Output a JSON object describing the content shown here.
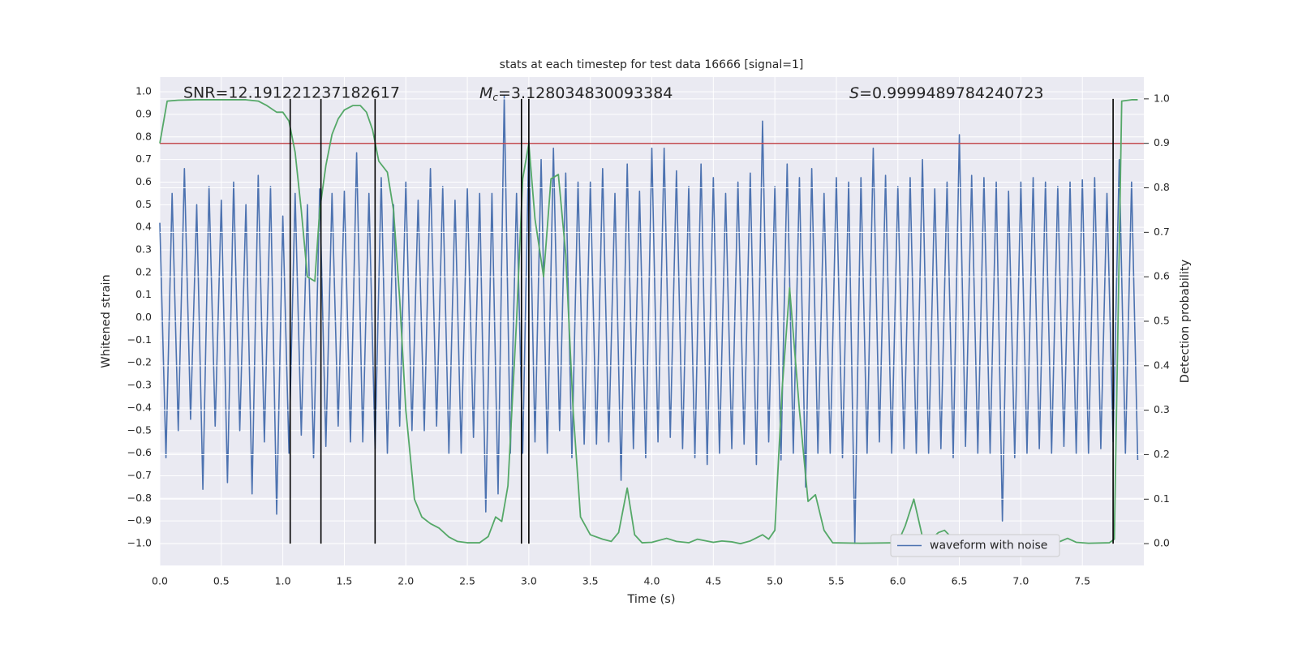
{
  "chart_data": {
    "type": "line",
    "title": "stats at each timestep for test data 16666 [signal=1]",
    "x_label": "Time (s)",
    "y_label": "Whitened strain",
    "y2_label": "Detection probability",
    "annotations": [
      {
        "text": "SNR=12.191221237182617"
      },
      {
        "symbol": "M",
        "subscript": "c",
        "text": "=3.128034830093384"
      },
      {
        "symbol": "S",
        "text": "=0.9999489784240723"
      }
    ],
    "xlim": [
      0,
      8
    ],
    "ylim": [
      -1.097,
      1.065
    ],
    "y2lim": [
      -0.049,
      1.049
    ],
    "xticks": [
      {
        "value": 0,
        "label": "0.0"
      },
      0.5,
      {
        "value": 1,
        "label": "1.0"
      },
      1.5,
      {
        "value": 2,
        "label": "2.0"
      },
      2.5,
      {
        "value": 3,
        "label": "3.0"
      },
      3.5,
      {
        "value": 4,
        "label": "4.0"
      },
      4.5,
      {
        "value": 5,
        "label": "5.0"
      },
      5.5,
      {
        "value": 6,
        "label": "6.0"
      },
      6.5,
      {
        "value": 7,
        "label": "7.0"
      },
      7.5
    ],
    "yticks": [
      {
        "value": -1,
        "label": "−1.0"
      },
      {
        "value": -0.9,
        "label": "−0.9"
      },
      {
        "value": -0.8,
        "label": "−0.8"
      },
      {
        "value": -0.7,
        "label": "−0.7"
      },
      {
        "value": -0.6,
        "label": "−0.6"
      },
      {
        "value": -0.5,
        "label": "−0.5"
      },
      {
        "value": -0.4,
        "label": "−0.4"
      },
      {
        "value": -0.3,
        "label": "−0.3"
      },
      {
        "value": -0.2,
        "label": "−0.2"
      },
      {
        "value": -0.1,
        "label": "−0.1"
      },
      {
        "value": 0,
        "label": "0.0"
      },
      0.1,
      0.2,
      0.3,
      0.4,
      0.5,
      0.6,
      0.7,
      0.8,
      0.9,
      {
        "value": 1,
        "label": "1.0"
      }
    ],
    "y2ticks": [
      {
        "value": 0,
        "label": "0.0"
      },
      0.1,
      0.2,
      0.3,
      0.4,
      0.5,
      0.6,
      0.7,
      0.8,
      0.9,
      {
        "value": 1,
        "label": "1.0"
      }
    ],
    "grid": true,
    "legend": "lower right",
    "series": [
      {
        "name": "waveform with noise",
        "color": "#4c72b0",
        "axis": "y",
        "x": [
          0,
          0.05,
          0.1,
          0.15,
          0.2,
          0.25,
          0.3,
          0.35,
          0.4,
          0.45,
          0.5,
          0.55,
          0.6,
          0.65,
          0.7,
          0.75,
          0.8,
          0.85,
          0.9,
          0.95,
          1,
          1.05,
          1.1,
          1.15,
          1.2,
          1.25,
          1.3,
          1.35,
          1.4,
          1.45,
          1.5,
          1.55,
          1.6,
          1.65,
          1.7,
          1.75,
          1.8,
          1.85,
          1.9,
          1.95,
          2,
          2.05,
          2.1,
          2.15,
          2.2,
          2.25,
          2.3,
          2.35,
          2.4,
          2.45,
          2.5,
          2.55,
          2.6,
          2.65,
          2.7,
          2.75,
          2.8,
          2.85,
          2.9,
          2.95,
          3,
          3.05,
          3.1,
          3.15,
          3.2,
          3.25,
          3.3,
          3.35,
          3.4,
          3.45,
          3.5,
          3.55,
          3.6,
          3.65,
          3.7,
          3.75,
          3.8,
          3.85,
          3.9,
          3.95,
          4,
          4.05,
          4.1,
          4.15,
          4.2,
          4.25,
          4.3,
          4.35,
          4.4,
          4.45,
          4.5,
          4.55,
          4.6,
          4.65,
          4.7,
          4.75,
          4.8,
          4.85,
          4.9,
          4.95,
          5,
          5.05,
          5.1,
          5.15,
          5.2,
          5.25,
          5.3,
          5.35,
          5.4,
          5.45,
          5.5,
          5.55,
          5.6,
          5.65,
          5.7,
          5.75,
          5.8,
          5.85,
          5.9,
          5.95,
          6,
          6.05,
          6.1,
          6.15,
          6.2,
          6.25,
          6.3,
          6.35,
          6.4,
          6.45,
          6.5,
          6.55,
          6.6,
          6.65,
          6.7,
          6.75,
          6.8,
          6.85,
          6.9,
          6.95,
          7,
          7.05,
          7.1,
          7.15,
          7.2,
          7.25,
          7.3,
          7.35,
          7.4,
          7.45,
          7.5,
          7.55,
          7.6,
          7.65,
          7.7,
          7.75,
          7.8,
          7.85,
          7.9,
          7.95
        ],
        "values": [
          0.42,
          -0.62,
          0.55,
          -0.5,
          0.66,
          -0.45,
          0.5,
          -0.76,
          0.58,
          -0.48,
          0.52,
          -0.73,
          0.6,
          -0.5,
          0.5,
          -0.78,
          0.63,
          -0.55,
          0.58,
          -0.87,
          0.45,
          -0.6,
          0.55,
          -0.52,
          0.5,
          -0.62,
          0.57,
          -0.57,
          0.55,
          -0.48,
          0.56,
          -0.55,
          0.73,
          -0.55,
          0.55,
          -0.58,
          0.62,
          -0.6,
          0.5,
          -0.48,
          0.6,
          -0.5,
          0.52,
          -0.5,
          0.66,
          -0.48,
          0.58,
          -0.6,
          0.52,
          -0.6,
          0.57,
          -0.53,
          0.55,
          -0.86,
          0.55,
          -0.78,
          0.98,
          -0.6,
          0.55,
          -0.6,
          0.78,
          -0.55,
          0.7,
          -0.6,
          0.75,
          -0.5,
          0.64,
          -0.62,
          0.6,
          -0.56,
          0.6,
          -0.56,
          0.66,
          -0.55,
          0.55,
          -0.72,
          0.68,
          -0.58,
          0.56,
          -0.62,
          0.75,
          -0.55,
          0.75,
          -0.53,
          0.65,
          -0.58,
          0.58,
          -0.62,
          0.68,
          -0.65,
          0.62,
          -0.6,
          0.55,
          -0.58,
          0.6,
          -0.56,
          0.64,
          -0.65,
          0.87,
          -0.55,
          0.58,
          -0.63,
          0.68,
          -0.6,
          0.62,
          -0.75,
          0.66,
          -0.6,
          0.55,
          -0.6,
          0.62,
          -0.62,
          0.6,
          -1.0,
          0.62,
          -0.6,
          0.75,
          -0.55,
          0.63,
          -0.6,
          0.58,
          -0.58,
          0.62,
          -0.6,
          0.7,
          -0.6,
          0.57,
          -0.58,
          0.6,
          -0.62,
          0.81,
          -0.57,
          0.63,
          -0.6,
          0.62,
          -0.6,
          0.6,
          -0.9,
          0.56,
          -0.62,
          0.6,
          -0.6,
          0.62,
          -0.58,
          0.6,
          -0.6,
          0.58,
          -0.57,
          0.6,
          -0.6,
          0.61,
          -0.6,
          0.62,
          -0.58,
          0.55,
          -0.55,
          0.7,
          -0.6,
          0.6,
          -0.63
        ]
      },
      {
        "color": "#55a868",
        "axis": "y2",
        "x": [
          0,
          0.06,
          0.15,
          0.3,
          0.5,
          0.7,
          0.8,
          0.87,
          0.95,
          1.0,
          1.05,
          1.1,
          1.15,
          1.2,
          1.26,
          1.3,
          1.35,
          1.4,
          1.45,
          1.5,
          1.57,
          1.63,
          1.68,
          1.73,
          1.78,
          1.85,
          1.9,
          1.95,
          2.0,
          2.07,
          2.13,
          2.2,
          2.27,
          2.35,
          2.42,
          2.5,
          2.6,
          2.67,
          2.73,
          2.78,
          2.83,
          2.9,
          2.95,
          3.0,
          3.05,
          3.12,
          3.18,
          3.24,
          3.3,
          3.36,
          3.42,
          3.5,
          3.6,
          3.67,
          3.73,
          3.8,
          3.86,
          3.92,
          4.0,
          4.12,
          4.2,
          4.3,
          4.37,
          4.5,
          4.57,
          4.65,
          4.72,
          4.8,
          4.9,
          4.95,
          5.0,
          5.06,
          5.12,
          5.2,
          5.27,
          5.33,
          5.4,
          5.47,
          5.7,
          6.0,
          6.06,
          6.13,
          6.2,
          6.27,
          6.33,
          6.38,
          6.45,
          6.5,
          6.7,
          6.9,
          7.1,
          7.25,
          7.32,
          7.38,
          7.45,
          7.55,
          7.72,
          7.76,
          7.79,
          7.82,
          7.9,
          7.95
        ],
        "values": [
          0.9,
          0.995,
          0.997,
          0.998,
          0.998,
          0.998,
          0.995,
          0.985,
          0.97,
          0.97,
          0.95,
          0.88,
          0.75,
          0.6,
          0.59,
          0.75,
          0.85,
          0.92,
          0.955,
          0.975,
          0.985,
          0.985,
          0.97,
          0.93,
          0.86,
          0.835,
          0.75,
          0.55,
          0.3,
          0.1,
          0.06,
          0.045,
          0.035,
          0.015,
          0.005,
          0.002,
          0.002,
          0.016,
          0.06,
          0.05,
          0.13,
          0.5,
          0.82,
          0.9,
          0.73,
          0.6,
          0.82,
          0.83,
          0.65,
          0.3,
          0.06,
          0.02,
          0.01,
          0.005,
          0.025,
          0.125,
          0.02,
          0.002,
          0.003,
          0.012,
          0.005,
          0.002,
          0.01,
          0.003,
          0.006,
          0.004,
          0.0,
          0.006,
          0.02,
          0.01,
          0.03,
          0.35,
          0.575,
          0.3,
          0.095,
          0.11,
          0.03,
          0.002,
          0.001,
          0.002,
          0.04,
          0.1,
          0.015,
          0.01,
          0.025,
          0.03,
          0.01,
          0.001,
          0.002,
          0.001,
          0.002,
          0.001,
          0.005,
          0.012,
          0.003,
          0.001,
          0.002,
          0.01,
          0.5,
          0.995,
          0.998,
          0.998
        ]
      }
    ],
    "threshold": {
      "value": 0.9,
      "axis": "y2",
      "color": "#c44e52"
    },
    "vlines": {
      "x": [
        1.06,
        1.31,
        1.75,
        2.94,
        3.0,
        7.75
      ],
      "y2_range": [
        0,
        1
      ],
      "color": "#000000"
    }
  }
}
